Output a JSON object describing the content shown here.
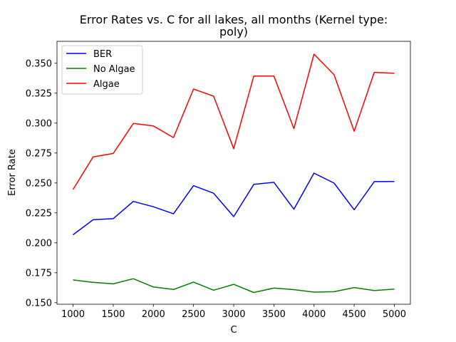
{
  "chart_data": {
    "type": "line",
    "title_lines": [
      "Error Rates vs. C for all lakes, all months (Kernel type:",
      "poly)"
    ],
    "xlabel": "C",
    "ylabel": "Error Rate",
    "x": [
      1000,
      1250,
      1500,
      1750,
      2000,
      2250,
      2500,
      2750,
      3000,
      3250,
      3500,
      3750,
      4000,
      4250,
      4500,
      4750,
      5000
    ],
    "xlim": [
      800,
      5200
    ],
    "ylim": [
      0.1487,
      0.3683
    ],
    "xticks": [
      1000,
      1500,
      2000,
      2500,
      3000,
      3500,
      4000,
      4500,
      5000
    ],
    "xtick_labels": [
      "1000",
      "1500",
      "2000",
      "2500",
      "3000",
      "3500",
      "4000",
      "4500",
      "5000"
    ],
    "yticks": [
      0.15,
      0.175,
      0.2,
      0.225,
      0.25,
      0.275,
      0.3,
      0.325,
      0.35
    ],
    "ytick_labels": [
      "0.150",
      "0.175",
      "0.200",
      "0.225",
      "0.250",
      "0.275",
      "0.300",
      "0.325",
      "0.350"
    ],
    "grid": false,
    "legend_position": "upper-left",
    "series": [
      {
        "name": "BER",
        "color": "#0000ff",
        "values": [
          0.2067,
          0.2193,
          0.2202,
          0.2346,
          0.2301,
          0.2242,
          0.2477,
          0.2414,
          0.2219,
          0.2488,
          0.2505,
          0.2281,
          0.2582,
          0.2499,
          0.2276,
          0.2511,
          0.2512
        ]
      },
      {
        "name": "No Algae",
        "color": "#008000",
        "values": [
          0.169,
          0.167,
          0.1657,
          0.17,
          0.1631,
          0.161,
          0.1672,
          0.1604,
          0.1653,
          0.1585,
          0.1622,
          0.1609,
          0.1588,
          0.1592,
          0.1626,
          0.1601,
          0.1613
        ]
      },
      {
        "name": "Algae",
        "color": "#ff0000",
        "values": [
          0.2445,
          0.2718,
          0.2746,
          0.2997,
          0.2976,
          0.2879,
          0.3284,
          0.3225,
          0.2786,
          0.3393,
          0.3393,
          0.2954,
          0.3576,
          0.3404,
          0.2932,
          0.3424,
          0.3416
        ]
      }
    ]
  }
}
